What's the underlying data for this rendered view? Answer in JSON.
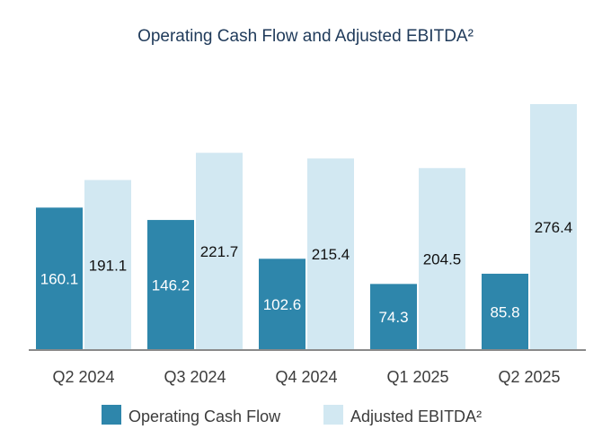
{
  "chart_data": {
    "type": "bar",
    "title": "Operating Cash Flow and Adjusted EBITDA²",
    "categories": [
      "Q2 2024",
      "Q3 2024",
      "Q4 2024",
      "Q1 2025",
      "Q2 2025"
    ],
    "series": [
      {
        "name": "Operating Cash Flow",
        "values": [
          160.1,
          146.2,
          102.6,
          74.3,
          85.8
        ],
        "color": "#2e86ab"
      },
      {
        "name": "Adjusted EBITDA²",
        "values": [
          191.1,
          221.7,
          215.4,
          204.5,
          276.4
        ],
        "color": "#d2e8f2"
      }
    ],
    "ylim": [
      0,
      276.4
    ],
    "grid": false,
    "legend": "bottom",
    "xlabel": "",
    "ylabel": ""
  }
}
